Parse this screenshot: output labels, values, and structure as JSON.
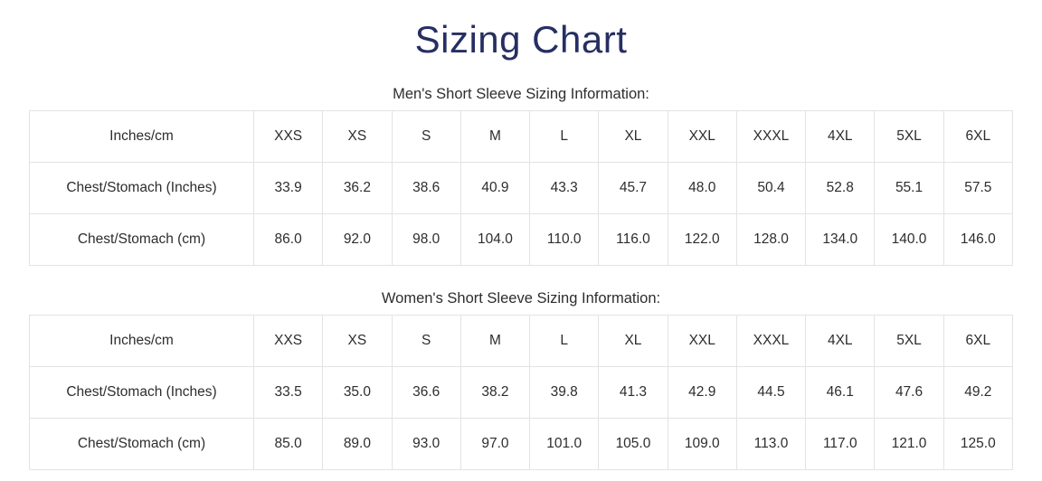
{
  "page": {
    "title": "Sizing Chart"
  },
  "colors": {
    "title": "#262f62",
    "text": "#2d2d2d",
    "border": "#e3e3e3",
    "background": "#ffffff"
  },
  "tables": [
    {
      "caption": "Men's Short Sleeve Sizing Information:",
      "header": [
        "Inches/cm",
        "XXS",
        "XS",
        "S",
        "M",
        "L",
        "XL",
        "XXL",
        "XXXL",
        "4XL",
        "5XL",
        "6XL"
      ],
      "rows": [
        {
          "label": "Chest/Stomach (Inches)",
          "values": [
            "33.9",
            "36.2",
            "38.6",
            "40.9",
            "43.3",
            "45.7",
            "48.0",
            "50.4",
            "52.8",
            "55.1",
            "57.5"
          ]
        },
        {
          "label": "Chest/Stomach (cm)",
          "values": [
            "86.0",
            "92.0",
            "98.0",
            "104.0",
            "110.0",
            "116.0",
            "122.0",
            "128.0",
            "134.0",
            "140.0",
            "146.0"
          ]
        }
      ]
    },
    {
      "caption": "Women's Short Sleeve Sizing Information:",
      "header": [
        "Inches/cm",
        "XXS",
        "XS",
        "S",
        "M",
        "L",
        "XL",
        "XXL",
        "XXXL",
        "4XL",
        "5XL",
        "6XL"
      ],
      "rows": [
        {
          "label": "Chest/Stomach (Inches)",
          "values": [
            "33.5",
            "35.0",
            "36.6",
            "38.2",
            "39.8",
            "41.3",
            "42.9",
            "44.5",
            "46.1",
            "47.6",
            "49.2"
          ]
        },
        {
          "label": "Chest/Stomach (cm)",
          "values": [
            "85.0",
            "89.0",
            "93.0",
            "97.0",
            "101.0",
            "105.0",
            "109.0",
            "113.0",
            "117.0",
            "121.0",
            "125.0"
          ]
        }
      ]
    }
  ]
}
